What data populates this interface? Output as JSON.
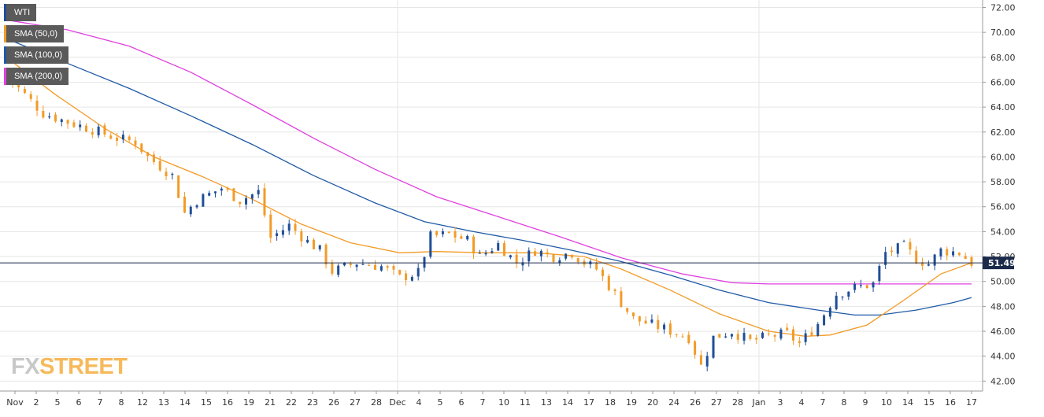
{
  "chart_data": {
    "type": "candlestick",
    "title": "WTI",
    "colors": {
      "up": "#1f4e98",
      "down": "#f29b28",
      "sma50": "#f29b28",
      "sma100": "#1f5aa6",
      "sma200": "#e040e0",
      "last_line": "#1b2a4a",
      "grid": "#e6e6e6"
    },
    "ylim": [
      41.2,
      72.6
    ],
    "y_ticks": [
      "42.00",
      "44.00",
      "46.00",
      "48.00",
      "50.00",
      "52.00",
      "54.00",
      "56.00",
      "58.00",
      "60.00",
      "62.00",
      "64.00",
      "66.00",
      "68.00",
      "70.00",
      "72.00"
    ],
    "x_labels": [
      "Nov",
      "2",
      "5",
      "6",
      "7",
      "8",
      "12",
      "13",
      "14",
      "15",
      "16",
      "19",
      "21",
      "22",
      "23",
      "26",
      "27",
      "28",
      "Dec",
      "4",
      "5",
      "6",
      "7",
      "10",
      "11",
      "13",
      "14",
      "17",
      "18",
      "19",
      "20",
      "24",
      "26",
      "27",
      "28",
      "Jan",
      "3",
      "4",
      "7",
      "8",
      "9",
      "10",
      "14",
      "15",
      "16",
      "17"
    ],
    "last_price": 51.49,
    "last_price_label": "51.49",
    "legend": [
      {
        "label": "WTI",
        "color": "#1f4e98"
      },
      {
        "label": "SMA (50,0)",
        "color": "#f29b28"
      },
      {
        "label": "SMA (100,0)",
        "color": "#1f5aa6"
      },
      {
        "label": "SMA (200,0)",
        "color": "#e040e0"
      }
    ],
    "close_path": [
      [
        0,
        66.5
      ],
      [
        6,
        63.5
      ],
      [
        10,
        62.8
      ],
      [
        14,
        62.2
      ],
      [
        18,
        61.5
      ],
      [
        21,
        61.2
      ],
      [
        23,
        60.0
      ],
      [
        27,
        58.5
      ],
      [
        29,
        55.5
      ],
      [
        31,
        56.5
      ],
      [
        35,
        57.5
      ],
      [
        38,
        56.5
      ],
      [
        41,
        57.2
      ],
      [
        43,
        53.5
      ],
      [
        46,
        54.5
      ],
      [
        49,
        53.2
      ],
      [
        51,
        52.5
      ],
      [
        53,
        50.8
      ],
      [
        57,
        51.5
      ],
      [
        61,
        51.2
      ],
      [
        64,
        50.3
      ],
      [
        67,
        50.7
      ],
      [
        69,
        53.6
      ],
      [
        72,
        53.8
      ],
      [
        75,
        53.3
      ],
      [
        77,
        52.0
      ],
      [
        80,
        53.0
      ],
      [
        83,
        51.5
      ],
      [
        86,
        52.5
      ],
      [
        89,
        52.0
      ],
      [
        92,
        52.3
      ],
      [
        94,
        51.5
      ],
      [
        96,
        51.0
      ],
      [
        100,
        48.3
      ],
      [
        102,
        47.0
      ],
      [
        107,
        46.2
      ],
      [
        111,
        45.5
      ],
      [
        113,
        43.2
      ],
      [
        115,
        45.5
      ],
      [
        118,
        46.0
      ],
      [
        121,
        45.2
      ],
      [
        124,
        45.6
      ],
      [
        127,
        45.8
      ],
      [
        129,
        45.0
      ],
      [
        132,
        46.6
      ],
      [
        135,
        49.0
      ],
      [
        138,
        49.5
      ],
      [
        141,
        49.8
      ],
      [
        143,
        52.3
      ],
      [
        146,
        52.8
      ],
      [
        148,
        51.8
      ],
      [
        150,
        51.4
      ],
      [
        152,
        52.5
      ],
      [
        155,
        52.3
      ],
      [
        157,
        51.5
      ]
    ],
    "sma50": [
      [
        0,
        68.0
      ],
      [
        8,
        65.0
      ],
      [
        16,
        62.3
      ],
      [
        24,
        60.0
      ],
      [
        32,
        58.4
      ],
      [
        40,
        56.6
      ],
      [
        48,
        54.6
      ],
      [
        56,
        53.1
      ],
      [
        64,
        52.3
      ],
      [
        70,
        52.4
      ],
      [
        78,
        52.3
      ],
      [
        86,
        52.3
      ],
      [
        94,
        52.0
      ],
      [
        100,
        51.0
      ],
      [
        108,
        49.3
      ],
      [
        116,
        47.4
      ],
      [
        124,
        46.0
      ],
      [
        130,
        45.6
      ],
      [
        134,
        45.7
      ],
      [
        140,
        46.5
      ],
      [
        146,
        48.5
      ],
      [
        152,
        50.6
      ],
      [
        157,
        51.5
      ]
    ],
    "sma100": [
      [
        0,
        69.5
      ],
      [
        10,
        67.5
      ],
      [
        20,
        65.5
      ],
      [
        30,
        63.3
      ],
      [
        40,
        61.0
      ],
      [
        50,
        58.5
      ],
      [
        60,
        56.3
      ],
      [
        68,
        54.8
      ],
      [
        76,
        54.0
      ],
      [
        84,
        53.3
      ],
      [
        92,
        52.5
      ],
      [
        100,
        51.6
      ],
      [
        108,
        50.5
      ],
      [
        116,
        49.3
      ],
      [
        124,
        48.3
      ],
      [
        132,
        47.7
      ],
      [
        138,
        47.3
      ],
      [
        142,
        47.3
      ],
      [
        148,
        47.7
      ],
      [
        154,
        48.3
      ],
      [
        157,
        48.7
      ]
    ],
    "sma200": [
      [
        0,
        71.0
      ],
      [
        10,
        70.2
      ],
      [
        20,
        68.9
      ],
      [
        30,
        66.8
      ],
      [
        40,
        64.2
      ],
      [
        50,
        61.5
      ],
      [
        60,
        59.0
      ],
      [
        70,
        56.8
      ],
      [
        80,
        55.2
      ],
      [
        90,
        53.6
      ],
      [
        100,
        51.9
      ],
      [
        110,
        50.6
      ],
      [
        118,
        49.9
      ],
      [
        124,
        49.8
      ],
      [
        132,
        49.8
      ],
      [
        140,
        49.8
      ],
      [
        150,
        49.8
      ],
      [
        157,
        49.8
      ]
    ]
  },
  "branding": {
    "logo_fx": "FX",
    "logo_street": "STREET"
  }
}
